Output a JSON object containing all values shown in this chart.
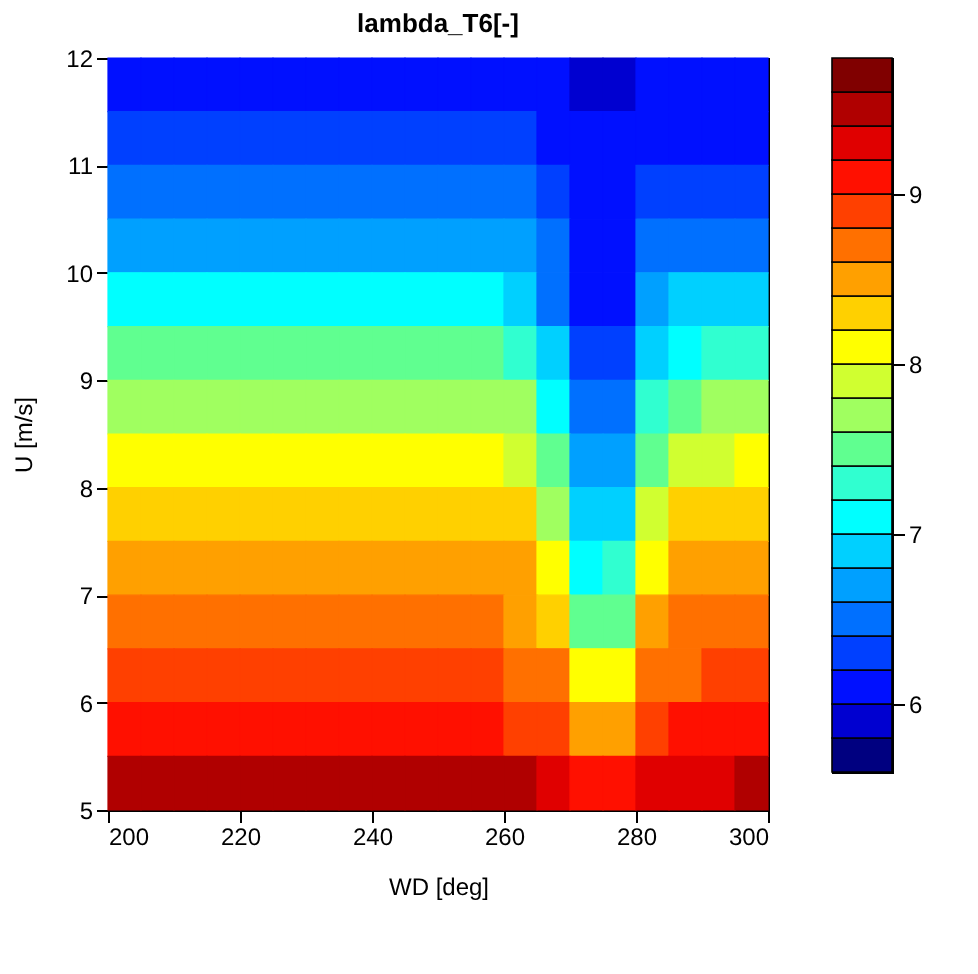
{
  "chart_data": {
    "type": "heatmap",
    "title": "lambda_T6[-]",
    "xlabel": "WD [deg]",
    "ylabel": "U [m/s]",
    "x": [
      202.5,
      207.5,
      212.5,
      217.5,
      222.5,
      227.5,
      232.5,
      237.5,
      242.5,
      247.5,
      252.5,
      257.5,
      262.5,
      267.5,
      272.5,
      277.5,
      282.5,
      287.5,
      292.5,
      297.5
    ],
    "y": [
      11.75,
      11.25,
      10.75,
      10.25,
      9.75,
      9.25,
      8.75,
      8.25,
      7.75,
      7.25,
      6.75,
      6.25,
      5.75,
      5.25
    ],
    "cells": [
      [
        6.08,
        6.08,
        6.08,
        6.08,
        6.08,
        6.08,
        6.08,
        6.08,
        6.08,
        6.08,
        6.08,
        6.08,
        6.05,
        6.0,
        5.86,
        5.86,
        6.0,
        6.03,
        6.05,
        6.06
      ],
      [
        6.25,
        6.25,
        6.25,
        6.25,
        6.25,
        6.25,
        6.25,
        6.25,
        6.25,
        6.25,
        6.25,
        6.25,
        6.2,
        6.12,
        6.0,
        6.0,
        6.1,
        6.15,
        6.15,
        6.15
      ],
      [
        6.5,
        6.5,
        6.5,
        6.5,
        6.5,
        6.5,
        6.5,
        6.5,
        6.5,
        6.5,
        6.5,
        6.5,
        6.42,
        6.25,
        6.06,
        6.07,
        6.25,
        6.3,
        6.32,
        6.32
      ],
      [
        6.76,
        6.76,
        6.76,
        6.76,
        6.76,
        6.76,
        6.76,
        6.76,
        6.76,
        6.76,
        6.76,
        6.76,
        6.65,
        6.4,
        6.11,
        6.12,
        6.42,
        6.55,
        6.58,
        6.58
      ],
      [
        7.06,
        7.06,
        7.06,
        7.06,
        7.06,
        7.06,
        7.06,
        7.06,
        7.06,
        7.06,
        7.06,
        7.06,
        6.92,
        6.58,
        6.16,
        6.18,
        6.62,
        6.82,
        6.88,
        6.88
      ],
      [
        7.4,
        7.4,
        7.4,
        7.4,
        7.4,
        7.4,
        7.4,
        7.4,
        7.4,
        7.4,
        7.4,
        7.4,
        7.25,
        6.82,
        6.24,
        6.26,
        6.9,
        7.15,
        7.25,
        7.3
      ],
      [
        7.75,
        7.75,
        7.75,
        7.75,
        7.75,
        7.75,
        7.75,
        7.75,
        7.75,
        7.75,
        7.75,
        7.75,
        7.6,
        7.1,
        6.4,
        6.44,
        7.2,
        7.5,
        7.6,
        7.65
      ],
      [
        8.13,
        8.13,
        8.13,
        8.13,
        8.13,
        8.13,
        8.13,
        8.13,
        8.13,
        8.13,
        8.13,
        8.13,
        7.95,
        7.45,
        6.65,
        6.7,
        7.5,
        7.85,
        7.98,
        8.05
      ],
      [
        8.36,
        8.36,
        8.36,
        8.36,
        8.36,
        8.36,
        8.36,
        8.36,
        8.36,
        8.36,
        8.36,
        8.36,
        8.23,
        7.8,
        6.85,
        6.9,
        7.85,
        8.2,
        8.33,
        8.38
      ],
      [
        8.5,
        8.5,
        8.5,
        8.5,
        8.5,
        8.5,
        8.5,
        8.5,
        8.5,
        8.5,
        8.5,
        8.5,
        8.43,
        8.1,
        7.12,
        7.2,
        8.15,
        8.42,
        8.52,
        8.56
      ],
      [
        8.64,
        8.64,
        8.64,
        8.64,
        8.64,
        8.64,
        8.64,
        8.64,
        8.64,
        8.64,
        8.64,
        8.64,
        8.58,
        8.38,
        7.5,
        7.58,
        8.4,
        8.6,
        8.66,
        8.69
      ],
      [
        8.8,
        8.8,
        8.8,
        8.8,
        8.8,
        8.8,
        8.8,
        8.8,
        8.8,
        8.8,
        8.8,
        8.8,
        8.72,
        8.6,
        8.0,
        8.05,
        8.65,
        8.78,
        8.85,
        8.88
      ],
      [
        9.08,
        9.08,
        9.08,
        9.08,
        9.08,
        9.08,
        9.08,
        9.08,
        9.08,
        9.08,
        9.08,
        9.08,
        8.95,
        8.9,
        8.52,
        8.55,
        8.95,
        9.05,
        9.08,
        9.1
      ],
      [
        9.47,
        9.47,
        9.47,
        9.47,
        9.55,
        9.55,
        9.47,
        9.47,
        9.47,
        9.47,
        9.47,
        9.47,
        9.4,
        9.3,
        9.15,
        9.15,
        9.3,
        9.35,
        9.38,
        9.4
      ]
    ],
    "xlim": [
      200,
      300
    ],
    "xticks": [
      200,
      220,
      240,
      260,
      280,
      300
    ],
    "ylim": [
      5,
      12
    ],
    "yticks": [
      5,
      6,
      7,
      8,
      9,
      10,
      11,
      12
    ],
    "clim": [
      5.6,
      9.8
    ],
    "cticks": [
      6,
      7,
      8,
      9
    ]
  }
}
